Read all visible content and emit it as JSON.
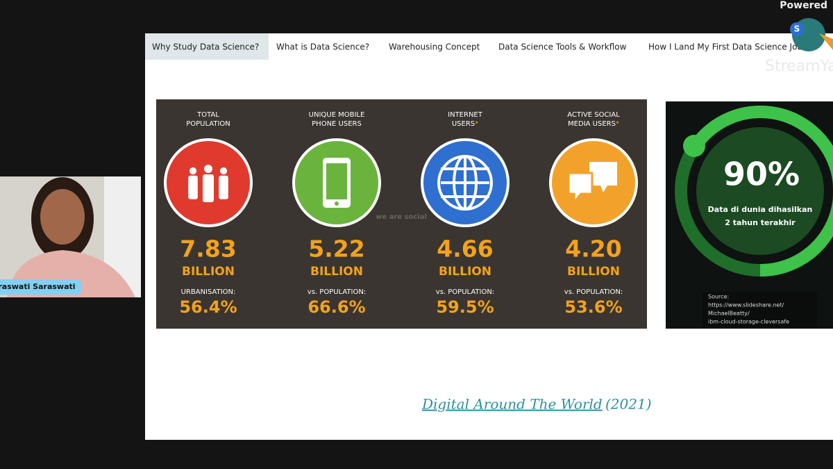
{
  "header": {
    "powered": "Powered",
    "brand": "StreamYard"
  },
  "tabs": [
    "Why Study Data Science?",
    "What is Data Science?",
    "Warehousing Concept",
    "Data Science Tools & Workflow",
    "How I Land My First Data Science Job"
  ],
  "infographic": {
    "watermark": "we are social",
    "stats": [
      {
        "label": [
          "TOTAL",
          "POPULATION"
        ],
        "value": "7.83",
        "unit": "BILLION",
        "sub": "URBANISATION:",
        "pct": "56.4%"
      },
      {
        "label": [
          "UNIQUE MOBILE",
          "PHONE USERS"
        ],
        "value": "5.22",
        "unit": "BILLION",
        "sub": "vs. POPULATION:",
        "pct": "66.6%"
      },
      {
        "label": [
          "INTERNET",
          "USERS"
        ],
        "note": "*",
        "value": "4.66",
        "unit": "BILLION",
        "sub": "vs. POPULATION:",
        "pct": "59.5%"
      },
      {
        "label": [
          "ACTIVE SOCIAL",
          "MEDIA USERS"
        ],
        "note": "*",
        "value": "4.20",
        "unit": "BILLION",
        "sub": "vs. POPULATION:",
        "pct": "53.6%"
      }
    ]
  },
  "side_panel": {
    "big": "90%",
    "text": [
      "Data di dunia dihasilkan",
      "2 tahun terakhir"
    ],
    "source": [
      "Source:",
      "https://www.slideshare.net/",
      "MichaelBeatty/",
      "ibm-cloud-storage-cleversafe"
    ]
  },
  "caption": {
    "link": "Digital Around The World",
    "year": "(2021)"
  },
  "presenter": {
    "name": "Saraswati Saraswati"
  }
}
